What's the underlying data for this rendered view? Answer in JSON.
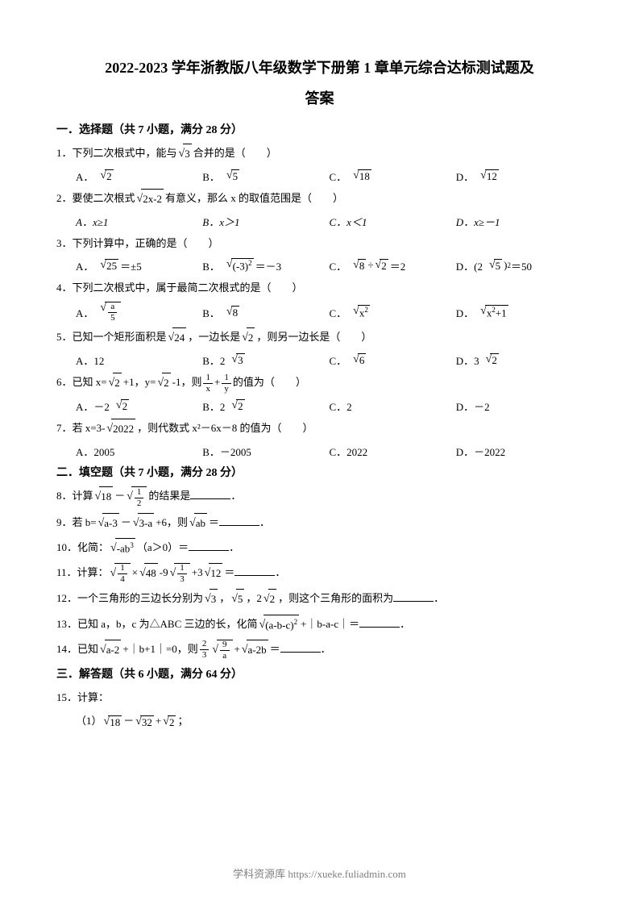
{
  "title": {
    "line1": "2022-2023 学年浙教版八年级数学下册第 1 章单元综合达标测试题及",
    "line2": "答案"
  },
  "sections": {
    "s1": "一．选择题（共 7 小题，满分 28 分）",
    "s2": "二．填空题（共 7 小题，满分 28 分）",
    "s3": "三．解答题（共 6 小题，满分 64 分）"
  },
  "questions": {
    "q1": {
      "text": "1．下列二次根式中，能与",
      "text2": "合并的是（　　）",
      "sqrt1": "3",
      "optA": "A．",
      "sqrtA": "2",
      "optB": "B．",
      "sqrtB": "5",
      "optC": "C．",
      "sqrtC": "18",
      "optD": "D．",
      "sqrtD": "12"
    },
    "q2": {
      "text": "2．要使二次根式",
      "text2": "有意义，那么 x 的取值范围是（　　）",
      "sqrt1": "2x-2",
      "optA": "A．x≥1",
      "optB": "B．x＞1",
      "optC": "C．x＜1",
      "optD": "D．x≥－1"
    },
    "q3": {
      "text": "3．下列计算中，正确的是（　　）",
      "optA": "A．",
      "sqrtA": "25",
      "textA": "＝±5",
      "optB": "B．",
      "sqrtB": "(-3)",
      "supB": "2",
      "textB": "＝－3",
      "optC": "C．",
      "sqrtC1": "8",
      "textC1": "÷",
      "sqrtC2": "2",
      "textC2": "＝2",
      "optD": "D．(2",
      "sqrtD": "5",
      "textD": ")², 2＝50",
      "supD": "2",
      "textD2": "＝50"
    },
    "q4": {
      "text": "4．下列二次根式中，属于最简二次根式的是（　　）",
      "optA": "A．",
      "fracA_num": "a",
      "fracA_den": "5",
      "optB": "B．",
      "sqrtB": "8",
      "optC": "C．",
      "sqrtC": "x",
      "supC": "2",
      "optD": "D．",
      "sqrtD": "x",
      "supD": "2",
      "textD": "+1"
    },
    "q5": {
      "text": "5．已知一个矩形面积是",
      "text2": "，一边长是",
      "text3": "，则另一边长是（　　）",
      "sqrt1": "24",
      "sqrt2": "2",
      "optA": "A．12",
      "optB": "B．2",
      "sqrtB": "3",
      "optC": "C．",
      "sqrtC": "6",
      "optD": "D．3",
      "sqrtD": "2"
    },
    "q6": {
      "text": "6．已知 x=",
      "text2": "+1，y=",
      "text3": "-1，则",
      "text4": "+",
      "text5": "的值为（　　）",
      "sqrt1": "2",
      "sqrt2": "2",
      "frac1_num": "1",
      "frac1_den": "x",
      "frac2_num": "1",
      "frac2_den": "y",
      "optA": "A．－2",
      "sqrtA": "2",
      "optB": "B．2",
      "sqrtB": "2",
      "optC": "C．2",
      "optD": "D．－2"
    },
    "q7": {
      "text": "7．若 x=3-",
      "text2": "，则代数式 x²－6x－8 的值为（　　）",
      "sqrt1": "2022",
      "optA": "A．2005",
      "optB": "B．－2005",
      "optC": "C．2022",
      "optD": "D．－2022"
    },
    "q8": {
      "text": "8．计算",
      "text2": "－",
      "text3": "的结果是",
      "text4": "．",
      "sqrt1": "18",
      "frac_num": "1",
      "frac_den": "2"
    },
    "q9": {
      "text": "9．若 b=",
      "text2": "－",
      "text3": "+6，则",
      "text4": "＝",
      "text5": "．",
      "sqrt1": "a-3",
      "sqrt2": "3-a",
      "sqrt3": "ab"
    },
    "q10": {
      "text": "10．化简：",
      "text2": "（a＞0）＝",
      "text3": "．",
      "sqrt1": "-ab",
      "sup1": "3"
    },
    "q11": {
      "text": "11．计算：",
      "text2": "×",
      "text3": "-9",
      "text4": "+3",
      "text5": "＝",
      "text6": "．",
      "frac1_num": "1",
      "frac1_den": "4",
      "sqrt1": "48",
      "frac2_num": "1",
      "frac2_den": "3",
      "sqrt2": "12"
    },
    "q12": {
      "text": "12．一个三角形的三边长分别为",
      "text2": "，",
      "text3": "，2",
      "text4": "，则这个三角形的面积为",
      "text5": "．",
      "sqrt1": "3",
      "sqrt2": "5",
      "sqrt3": "2"
    },
    "q13": {
      "text": "13．已知 a，b，c 为△ABC 三边的长，化简",
      "text2": "+｜b-a-c｜＝",
      "text3": "．",
      "sqrt1": "(a-b-c)",
      "sup1": "2"
    },
    "q14": {
      "text": "14．已知",
      "text2": "+｜b+1｜=0，则",
      "text3": "+",
      "text4": "＝",
      "text5": "．",
      "sqrt1": "a-2",
      "frac1_num": "2",
      "frac1_den": "3",
      "frac2_num": "9",
      "frac2_den": "a",
      "sqrt2": "a-2b"
    },
    "q15": {
      "text": "15．计算：",
      "sub1": "（1）",
      "sub1_text2": "－",
      "sub1_text3": "+",
      "sub1_text4": "；",
      "sqrt1": "18",
      "sqrt2": "32",
      "sqrt3": "2"
    }
  },
  "footer": "学科资源库 https://xueke.fuliadmin.com",
  "colors": {
    "text": "#000000",
    "background": "#ffffff",
    "footer": "#808080"
  },
  "typography": {
    "title_fontsize": 18,
    "body_fontsize": 13,
    "section_fontsize": 14,
    "font_family": "SimSun"
  }
}
